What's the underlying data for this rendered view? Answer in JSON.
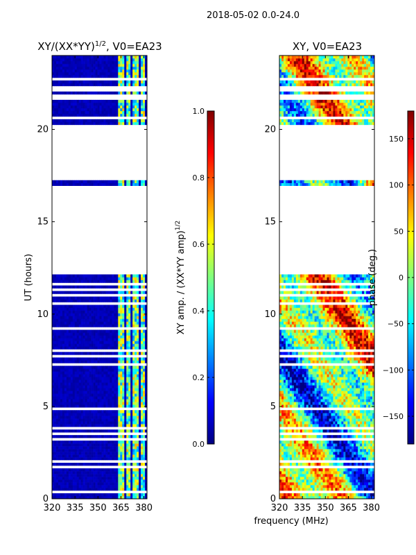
{
  "suptitle": "2018-05-02 0.0-24.0",
  "shared_xlabel": "frequency (MHz)",
  "colors": {
    "jet": [
      "#00007f",
      "#0000ff",
      "#007fff",
      "#00ffff",
      "#7fff7f",
      "#ffff00",
      "#ff7f00",
      "#ff0000",
      "#7f0000"
    ],
    "gap": "#ffffff"
  },
  "chart_data": [
    {
      "type": "heatmap",
      "title": "XY/(XX*YY)",
      "title_superscript": "1/2",
      "title_suffix": ", V0=EA23",
      "xlabel": "",
      "ylabel": "UT (hours)",
      "xlim": [
        320,
        382
      ],
      "ylim": [
        0,
        24
      ],
      "xticks": [
        320,
        335,
        350,
        365,
        380
      ],
      "yticks": [
        0,
        5,
        10,
        15,
        20
      ],
      "pattern": "amplitude",
      "bright_channels_mhz": [
        [
          363.5,
          366.5
        ],
        [
          368.5,
          371.5
        ],
        [
          373,
          376.5
        ],
        [
          378,
          381
        ]
      ],
      "colorbar": {
        "label": "XY amp. / (XX*YY amp)",
        "label_superscript": "1/2",
        "range": [
          0.0,
          1.0
        ],
        "ticks": [
          "0.0",
          "0.2",
          "0.4",
          "0.6",
          "0.8",
          "1.0"
        ]
      }
    },
    {
      "type": "heatmap",
      "title": "XY, V0=EA23",
      "xlabel": "",
      "ylabel": "",
      "xlim": [
        320,
        382
      ],
      "ylim": [
        0,
        24
      ],
      "xticks": [
        320,
        335,
        350,
        365,
        380
      ],
      "yticks": [
        0,
        5,
        10,
        15,
        20
      ],
      "pattern": "phase",
      "colorbar": {
        "label": "phase (deg.)",
        "range": [
          -180,
          180
        ],
        "ticks": [
          "150",
          "100",
          "50",
          "0",
          "−50",
          "−100",
          "−150"
        ],
        "tick_values": [
          150,
          100,
          50,
          0,
          -50,
          -100,
          -150
        ]
      }
    }
  ],
  "data_gaps_ut_hours": [
    [
      0.35,
      0.45
    ],
    [
      1.7,
      1.8
    ],
    [
      2.0,
      2.1
    ],
    [
      3.15,
      3.3
    ],
    [
      3.5,
      3.6
    ],
    [
      3.75,
      3.85
    ],
    [
      4.3,
      4.4
    ],
    [
      4.8,
      4.9
    ],
    [
      6.7,
      6.8
    ],
    [
      7.25,
      7.4
    ],
    [
      7.6,
      7.75
    ],
    [
      7.95,
      8.05
    ],
    [
      8.8,
      8.9
    ],
    [
      9.2,
      9.3
    ],
    [
      9.7,
      9.8
    ],
    [
      10.3,
      10.4
    ],
    [
      10.55,
      10.65
    ],
    [
      10.95,
      11.05
    ],
    [
      11.25,
      11.35
    ],
    [
      11.6,
      11.7
    ],
    [
      12.2,
      17.0
    ],
    [
      17.2,
      20.2
    ],
    [
      20.6,
      20.7
    ],
    [
      20.95,
      21.05
    ],
    [
      21.6,
      21.9
    ],
    [
      22.05,
      22.35
    ],
    [
      22.6,
      22.75
    ],
    [
      23.35,
      23.45
    ]
  ]
}
